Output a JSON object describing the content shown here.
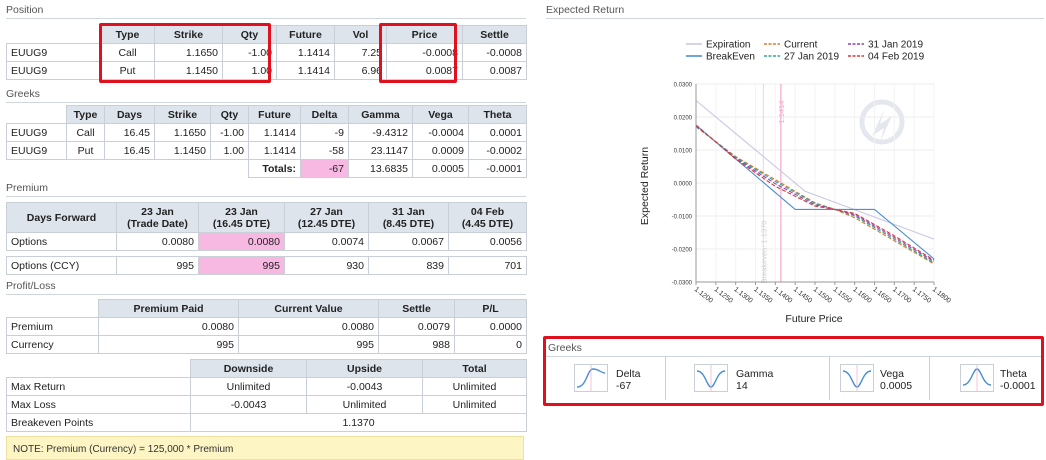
{
  "position": {
    "title": "Position",
    "headers": [
      "Type",
      "Strike",
      "Qty",
      "Future",
      "Vol",
      "Price",
      "Settle"
    ],
    "rows": [
      {
        "name": "EUUG9",
        "type": "Call",
        "strike": "1.1650",
        "qty": "-1.00",
        "future": "1.1414",
        "vol": "7.25",
        "price": "-0.0008",
        "settle": "-0.0008"
      },
      {
        "name": "EUUG9",
        "type": "Put",
        "strike": "1.1450",
        "qty": "1.00",
        "future": "1.1414",
        "vol": "6.96",
        "price": "0.0087",
        "settle": "0.0087"
      }
    ]
  },
  "greeks": {
    "title": "Greeks",
    "headers": [
      "Type",
      "Days",
      "Strike",
      "Qty",
      "Future",
      "Delta",
      "Gamma",
      "Vega",
      "Theta"
    ],
    "rows": [
      {
        "name": "EUUG9",
        "type": "Call",
        "days": "16.45",
        "strike": "1.1650",
        "qty": "-1.00",
        "future": "1.1414",
        "delta": "-9",
        "gamma": "-9.4312",
        "vega": "-0.0004",
        "theta": "0.0001"
      },
      {
        "name": "EUUG9",
        "type": "Put",
        "days": "16.45",
        "strike": "1.1450",
        "qty": "1.00",
        "future": "1.1414",
        "delta": "-58",
        "gamma": "23.1147",
        "vega": "0.0009",
        "theta": "-0.0002"
      }
    ],
    "totals_label": "Totals:",
    "totals": {
      "delta": "-67",
      "gamma": "13.6835",
      "vega": "0.0005",
      "theta": "-0.0001"
    }
  },
  "premium": {
    "title": "Premium",
    "corner": "Days Forward",
    "columns": [
      {
        "line1": "23 Jan",
        "line2": "(Trade Date)"
      },
      {
        "line1": "23 Jan",
        "line2": "(16.45 DTE)"
      },
      {
        "line1": "27 Jan",
        "line2": "(12.45 DTE)"
      },
      {
        "line1": "31 Jan",
        "line2": "(8.45 DTE)"
      },
      {
        "line1": "04 Feb",
        "line2": "(4.45 DTE)"
      }
    ],
    "options_label": "Options",
    "options": [
      "0.0080",
      "0.0080",
      "0.0074",
      "0.0067",
      "0.0056"
    ],
    "ccy_label": "Options (CCY)",
    "ccy": [
      "995",
      "995",
      "930",
      "839",
      "701"
    ]
  },
  "pl": {
    "title": "Profit/Loss",
    "headers": [
      "Premium Paid",
      "Current Value",
      "Settle",
      "P/L"
    ],
    "rows": [
      {
        "label": "Premium",
        "paid": "0.0080",
        "current": "0.0080",
        "settle": "0.0079",
        "pl": "0.0000"
      },
      {
        "label": "Currency",
        "paid": "995",
        "current": "995",
        "settle": "988",
        "pl": "0"
      }
    ]
  },
  "risk": {
    "headers": [
      "Downside",
      "Upside",
      "Total"
    ],
    "rows": [
      {
        "label": "Max Return",
        "down": "Unlimited",
        "up": "-0.0043",
        "total": "Unlimited"
      },
      {
        "label": "Max Loss",
        "down": "-0.0043",
        "up": "Unlimited",
        "total": "Unlimited"
      }
    ],
    "breakeven_label": "Breakeven Points",
    "breakeven": "1.1370"
  },
  "note": "NOTE: Premium (Currency) = 125,000 * Premium",
  "expected_return": {
    "title": "Expected Return"
  },
  "greeks_panel": {
    "title": "Greeks",
    "items": [
      {
        "name": "Delta",
        "value": "-67",
        "icon": "delta-curve-icon"
      },
      {
        "name": "Gamma",
        "value": "14",
        "icon": "gamma-curve-icon"
      },
      {
        "name": "Vega",
        "value": "0.0005",
        "icon": "vega-curve-icon"
      },
      {
        "name": "Theta",
        "value": "-0.0001",
        "icon": "theta-curve-icon"
      }
    ]
  },
  "colors": {
    "highlight_pink": "#f7b9e2",
    "red_outline": "#e0101e",
    "header_bg": "#dde4ec"
  },
  "chart_data": {
    "type": "line",
    "xlabel": "Future Price",
    "ylabel": "Expected Return",
    "x_ticks": [
      "1.1200",
      "1.1250",
      "1.1300",
      "1.1350",
      "1.1400",
      "1.1450",
      "1.1500",
      "1.1550",
      "1.1600",
      "1.1650",
      "1.1700",
      "1.1750",
      "1.1800"
    ],
    "y_ticks": [
      "0.0300",
      "0.0200",
      "0.0100",
      "0.0000",
      "-0.0100",
      "-0.0200",
      "-0.0300"
    ],
    "xlim": [
      1.12,
      1.18
    ],
    "ylim": [
      -0.03,
      0.03
    ],
    "vertical_markers": [
      {
        "x": 1.1414,
        "label": "1.1414",
        "color": "#f7a8c8"
      },
      {
        "x": 1.137,
        "label": "Breakeven: 1.1370",
        "color": "#e2e2e2"
      }
    ],
    "legend_placement": "top",
    "series": [
      {
        "name": "Expiration",
        "color": "#c8c8e6",
        "dash": "",
        "x": [
          1.12,
          1.1475,
          1.18
        ],
        "y": [
          0.025,
          -0.0025,
          -0.017
        ]
      },
      {
        "name": "BreakEven",
        "color": "#4a8fd4",
        "dash": "",
        "x": [
          1.12,
          1.145,
          1.165,
          1.18
        ],
        "y": [
          0.0175,
          -0.008,
          -0.008,
          -0.023
        ]
      },
      {
        "name": "Current",
        "color": "#e07a2e",
        "dash": "4,2",
        "x": [
          1.12,
          1.13,
          1.14,
          1.15,
          1.155,
          1.16,
          1.17,
          1.18
        ],
        "y": [
          0.017,
          0.008,
          0.001,
          -0.006,
          -0.008,
          -0.0105,
          -0.0175,
          -0.0245
        ]
      },
      {
        "name": "27 Jan 2019",
        "color": "#2aa89a",
        "dash": "4,2",
        "x": [
          1.12,
          1.13,
          1.14,
          1.15,
          1.155,
          1.16,
          1.17,
          1.18
        ],
        "y": [
          0.0172,
          0.0078,
          0.0005,
          -0.0062,
          -0.008,
          -0.01,
          -0.017,
          -0.0242
        ]
      },
      {
        "name": "31 Jan 2019",
        "color": "#9b3fb5",
        "dash": "4,2",
        "x": [
          1.12,
          1.13,
          1.14,
          1.15,
          1.155,
          1.16,
          1.17,
          1.18
        ],
        "y": [
          0.0174,
          0.0075,
          -0.0002,
          -0.0066,
          -0.008,
          -0.0096,
          -0.0165,
          -0.0238
        ]
      },
      {
        "name": "04 Feb 2019",
        "color": "#d23a3a",
        "dash": "4,2",
        "x": [
          1.12,
          1.13,
          1.14,
          1.15,
          1.155,
          1.16,
          1.17,
          1.18
        ],
        "y": [
          0.0176,
          0.0072,
          -0.001,
          -0.007,
          -0.008,
          -0.0092,
          -0.016,
          -0.0234
        ]
      }
    ]
  }
}
